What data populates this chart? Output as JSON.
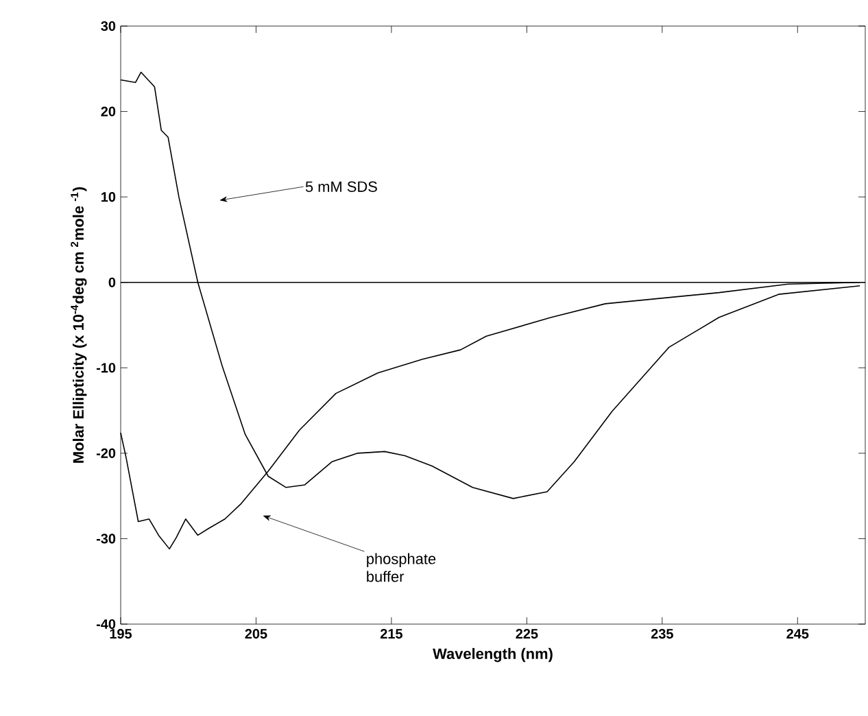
{
  "chart_data": {
    "type": "line",
    "xlabel": "Wavelength (nm)",
    "ylabel": "Molar Ellipticity (x 10$^{-4}$deg cm $^{2}$mole $^{-1}$)",
    "xlim": [
      195,
      250
    ],
    "xticks": [
      195,
      205,
      215,
      225,
      235,
      245
    ],
    "ylim": [
      -40,
      30
    ],
    "yticks": [
      -40,
      -30,
      -20,
      -10,
      0,
      10,
      20,
      30
    ],
    "series": [
      {
        "color": "#000000",
        "x": [
          195,
          196.1,
          196.5,
          197.5,
          198,
          198.5,
          199.3,
          200.7,
          202.5,
          204.2,
          205.9,
          207.2,
          208.6,
          210.6,
          212.5,
          214.5,
          216,
          218,
          221,
          224,
          226.5,
          228.5,
          231.3,
          235.5,
          239.2,
          243.6,
          249.6
        ],
        "values": [
          23.7,
          23.4,
          24.6,
          22.9,
          17.8,
          17,
          10,
          0,
          -9.8,
          -17.8,
          -22.7,
          -24,
          -23.7,
          -21,
          -20,
          -19.8,
          -20.3,
          -21.5,
          -24,
          -25.3,
          -24.5,
          -21,
          -15.1,
          -7.6,
          -4.1,
          -1.4,
          -0.4
        ]
      },
      {
        "color": "#000000",
        "x": [
          195,
          195.4,
          196.3,
          197.1,
          197.8,
          198.6,
          199.1,
          199.8,
          200.7,
          201.5,
          202.7,
          203.9,
          205.9,
          208.2,
          210.9,
          214,
          217.3,
          220.1,
          222,
          226.8,
          230.8,
          239.2,
          244.3,
          249.6
        ],
        "values": [
          -17.6,
          -20.5,
          -28,
          -27.7,
          -29.6,
          -31.2,
          -29.9,
          -27.7,
          -29.6,
          -28.8,
          -27.7,
          -25.9,
          -22.1,
          -17.3,
          -13,
          -10.6,
          -9,
          -7.9,
          -6.3,
          -4.1,
          -2.5,
          -1.2,
          -0.2,
          0
        ]
      }
    ],
    "ref_lines": [
      {
        "axis": "y",
        "value": 0,
        "color": "#000000"
      }
    ],
    "annotations": [
      "5 mM SDS",
      "phosphate buffer"
    ]
  }
}
